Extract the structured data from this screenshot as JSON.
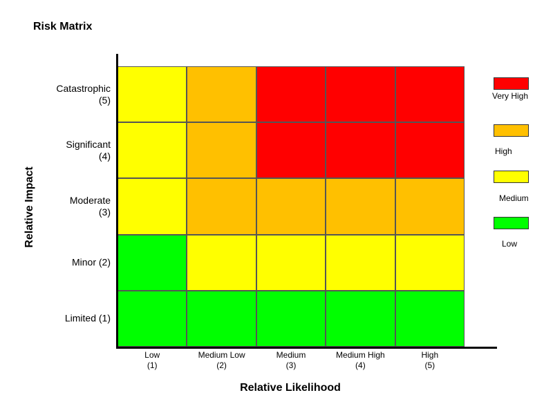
{
  "chart_data": {
    "type": "heatmap",
    "title": "Risk Matrix",
    "xlabel": "Relative Likelihood",
    "ylabel": "Relative Impact",
    "x_categories": [
      {
        "name": "Low",
        "score": "(1)"
      },
      {
        "name": "Medium Low",
        "score": "(2)"
      },
      {
        "name": "Medium",
        "score": "(3)"
      },
      {
        "name": "Medium High",
        "score": "(4)"
      },
      {
        "name": "High",
        "score": "(5)"
      }
    ],
    "y_categories": [
      {
        "name": "Catastrophic",
        "score": "(5)"
      },
      {
        "name": "Significant",
        "score": "(4)"
      },
      {
        "name": "Moderate",
        "score": "(3)"
      },
      {
        "name": "Minor (2)",
        "score": ""
      },
      {
        "name": "Limited (1)",
        "score": ""
      }
    ],
    "matrix": [
      [
        "Medium",
        "High",
        "Very High",
        "Very High",
        "Very High"
      ],
      [
        "Medium",
        "High",
        "Very High",
        "Very High",
        "Very High"
      ],
      [
        "Medium",
        "High",
        "High",
        "High",
        "High"
      ],
      [
        "Low",
        "Medium",
        "Medium",
        "Medium",
        "Medium"
      ],
      [
        "Low",
        "Low",
        "Low",
        "Low",
        "Low"
      ]
    ],
    "legend": [
      {
        "label": "Very High",
        "color": "#ff0000"
      },
      {
        "label": "High",
        "color": "#ffc000"
      },
      {
        "label": "Medium",
        "color": "#ffff00"
      },
      {
        "label": "Low",
        "color": "#00ff00"
      }
    ],
    "legend_position": "right"
  }
}
